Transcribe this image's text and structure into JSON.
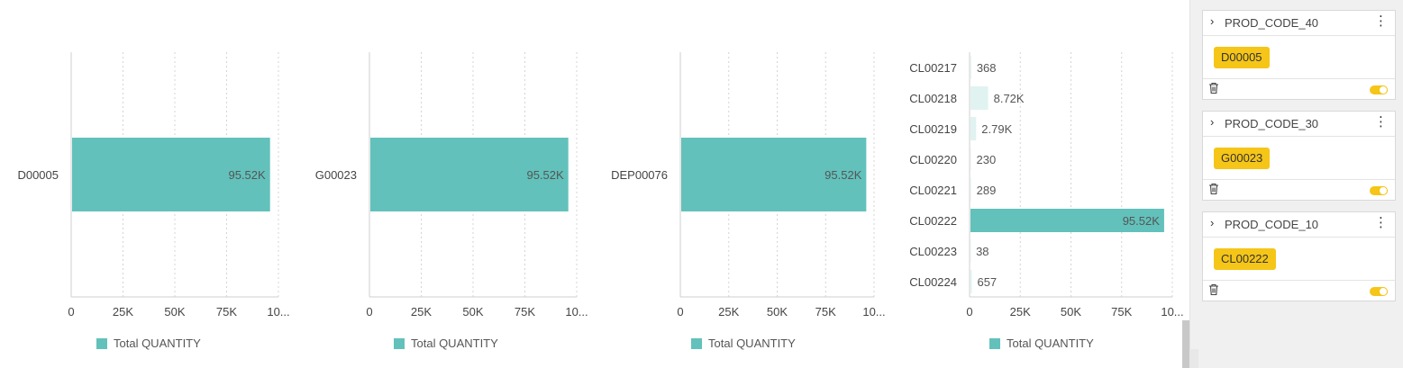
{
  "chart_data": [
    {
      "type": "bar",
      "orientation": "horizontal",
      "categories": [
        "D00005"
      ],
      "series": [
        {
          "name": "Total QUANTITY",
          "values": [
            95520
          ],
          "labels": [
            "95.52K"
          ]
        }
      ],
      "xlim": [
        0,
        100000
      ],
      "xticks": [
        "0",
        "25K",
        "50K",
        "75K",
        "10..."
      ],
      "grid": true,
      "legend_position": "bottom"
    },
    {
      "type": "bar",
      "orientation": "horizontal",
      "categories": [
        "G00023"
      ],
      "series": [
        {
          "name": "Total QUANTITY",
          "values": [
            95520
          ],
          "labels": [
            "95.52K"
          ]
        }
      ],
      "xlim": [
        0,
        100000
      ],
      "xticks": [
        "0",
        "25K",
        "50K",
        "75K",
        "10..."
      ],
      "grid": true,
      "legend_position": "bottom"
    },
    {
      "type": "bar",
      "orientation": "horizontal",
      "categories": [
        "DEP00076"
      ],
      "series": [
        {
          "name": "Total QUANTITY",
          "values": [
            95520
          ],
          "labels": [
            "95.52K"
          ]
        }
      ],
      "xlim": [
        0,
        100000
      ],
      "xticks": [
        "0",
        "25K",
        "50K",
        "75K",
        "10..."
      ],
      "grid": true,
      "legend_position": "bottom"
    },
    {
      "type": "bar",
      "orientation": "horizontal",
      "categories": [
        "CL00217",
        "CL00218",
        "CL00219",
        "CL00220",
        "CL00221",
        "CL00222",
        "CL00223",
        "CL00224"
      ],
      "series": [
        {
          "name": "Total QUANTITY",
          "values": [
            368,
            8720,
            2790,
            230,
            289,
            95520,
            38,
            657
          ],
          "labels": [
            "368",
            "8.72K",
            "2.79K",
            "230",
            "289",
            "95.52K",
            "38",
            "657"
          ],
          "highlighted": "CL00222"
        }
      ],
      "xlim": [
        0,
        100000
      ],
      "xticks": [
        "0",
        "25K",
        "50K",
        "75K",
        "10..."
      ],
      "grid": true,
      "legend_position": "bottom"
    }
  ],
  "colors": {
    "bar": "#62c1bb",
    "bar_faded": "#e0f3f1",
    "chip": "#f5c518"
  },
  "filters": [
    {
      "title": "PROD_CODE_40",
      "value": "D00005",
      "enabled": true
    },
    {
      "title": "PROD_CODE_30",
      "value": "G00023",
      "enabled": true
    },
    {
      "title": "PROD_CODE_10",
      "value": "CL00222",
      "enabled": true
    }
  ],
  "icons": {
    "expand": "chevron-right-icon",
    "menu": "kebab-menu-icon",
    "delete": "trash-icon",
    "toggle": "toggle-switch-icon"
  }
}
